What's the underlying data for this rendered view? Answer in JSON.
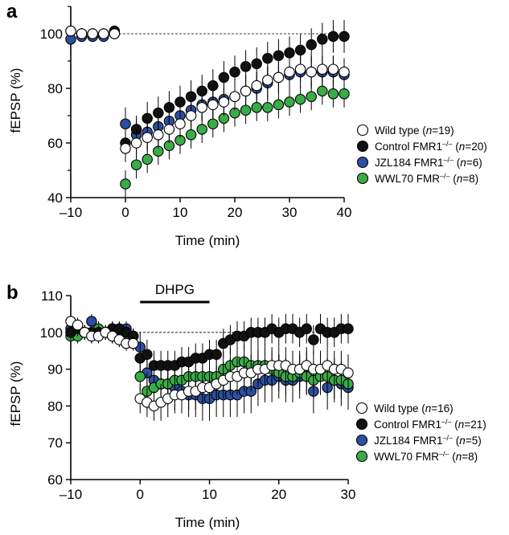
{
  "chart_data": [
    {
      "panel": "a",
      "type": "scatter",
      "xlabel": "Time (min)",
      "ylabel": "fEPSP (%)",
      "xlim": [
        -10,
        40
      ],
      "ylim": [
        40,
        110
      ],
      "xticks": [
        "–10",
        "0",
        "10",
        "20",
        "30",
        "40"
      ],
      "yticks": [
        "40",
        "60",
        "80",
        "100"
      ],
      "baseline": 100,
      "legend_position": "right",
      "series": [
        {
          "name": "Wild type (n=19)",
          "legend": {
            "prefix": "Wild type (",
            "n": "n",
            "suffix": "=19)"
          },
          "color": "#ffffff",
          "x": [
            -10,
            -8,
            -6,
            -4,
            -2,
            0,
            2,
            4,
            6,
            8,
            10,
            12,
            14,
            16,
            18,
            20,
            22,
            24,
            26,
            28,
            30,
            32,
            34,
            36,
            38,
            40
          ],
          "y": [
            101,
            100,
            100,
            100,
            100,
            58,
            60,
            62,
            63,
            65,
            67,
            70,
            73,
            74,
            75,
            77,
            79,
            81,
            83,
            84,
            86,
            87,
            86,
            87,
            87,
            86
          ],
          "err": [
            2,
            2,
            2,
            2,
            2,
            5,
            5,
            5,
            5,
            5,
            5,
            5,
            5,
            5,
            5,
            5,
            5,
            5,
            5,
            5,
            5,
            5,
            5,
            5,
            5,
            5
          ]
        },
        {
          "name": "Control FMR1–/– (n=20)",
          "legend": {
            "prefix": "Control FMR1",
            "sup": "–/–",
            "mid": " (",
            "n": "n",
            "suffix": "=20)"
          },
          "color": "#111111",
          "x": [
            -10,
            -8,
            -6,
            -4,
            -2,
            0,
            2,
            4,
            6,
            8,
            10,
            12,
            14,
            16,
            18,
            20,
            22,
            24,
            26,
            28,
            30,
            32,
            34,
            36,
            38,
            40
          ],
          "y": [
            101,
            100,
            100,
            100,
            101,
            60,
            65,
            69,
            71,
            73,
            75,
            77,
            79,
            81,
            84,
            86,
            88,
            89,
            91,
            92,
            93,
            94,
            96,
            98,
            99,
            99
          ],
          "err": [
            2,
            2,
            2,
            2,
            2,
            5,
            5,
            6,
            6,
            6,
            6,
            6,
            6,
            6,
            6,
            6,
            6,
            6,
            6,
            6,
            6,
            6,
            6,
            6,
            6,
            6
          ]
        },
        {
          "name": "JZL184 FMR1–/– (n=6)",
          "legend": {
            "prefix": "JZL184 FMR1",
            "sup": "–/–",
            "mid": " (",
            "n": "n",
            "suffix": "=6)"
          },
          "color": "#2d4fa2",
          "x": [
            -10,
            -8,
            -6,
            -4,
            -2,
            0,
            2,
            4,
            6,
            8,
            10,
            12,
            14,
            16,
            18,
            20,
            22,
            24,
            26,
            28,
            30,
            32,
            34,
            36,
            38,
            40
          ],
          "y": [
            98,
            99,
            99,
            99,
            100,
            67,
            63,
            64,
            66,
            68,
            70,
            72,
            74,
            75,
            76,
            77,
            79,
            80,
            82,
            84,
            85,
            86,
            86,
            86,
            86,
            85
          ],
          "err": [
            2,
            2,
            2,
            2,
            2,
            6,
            6,
            6,
            6,
            6,
            6,
            6,
            6,
            6,
            6,
            6,
            6,
            6,
            6,
            6,
            6,
            6,
            6,
            6,
            6,
            6
          ]
        },
        {
          "name": "WWL70 FMR–/– (n=8)",
          "legend": {
            "prefix": "WWL70 FMR",
            "sup": "–/–",
            "mid": " (",
            "n": "n",
            "suffix": "=8)"
          },
          "color": "#3aac47",
          "x": [
            0,
            2,
            4,
            6,
            8,
            10,
            12,
            14,
            16,
            18,
            20,
            22,
            24,
            26,
            28,
            30,
            32,
            34,
            36,
            38,
            40
          ],
          "y": [
            45,
            52,
            54,
            57,
            59,
            61,
            63,
            65,
            67,
            69,
            71,
            72,
            73,
            73,
            74,
            75,
            76,
            77,
            79,
            78,
            78
          ],
          "err": [
            5,
            5,
            5,
            5,
            5,
            5,
            5,
            5,
            5,
            5,
            5,
            5,
            5,
            5,
            5,
            5,
            5,
            5,
            5,
            5,
            5
          ]
        }
      ]
    },
    {
      "panel": "b",
      "type": "scatter",
      "xlabel": "Time (min)",
      "ylabel": "fEPSP (%)",
      "xlim": [
        -10,
        30
      ],
      "ylim": [
        60,
        110
      ],
      "xticks": [
        "–10",
        "0",
        "10",
        "20",
        "30"
      ],
      "yticks": [
        "60",
        "70",
        "80",
        "90",
        "100",
        "110"
      ],
      "baseline": 100,
      "drug_bar": {
        "label": "DHPG",
        "start": 0,
        "end": 10
      },
      "legend_position": "right",
      "series": [
        {
          "name": "Wild type (n=16)",
          "legend": {
            "prefix": "Wild type (",
            "n": "n",
            "suffix": "=16)"
          },
          "color": "#ffffff",
          "x": [
            -10,
            -9,
            -8,
            -7,
            -6,
            -5,
            -4,
            -3,
            -2,
            -1,
            0,
            1,
            2,
            3,
            4,
            5,
            6,
            7,
            8,
            9,
            10,
            11,
            12,
            13,
            14,
            15,
            16,
            17,
            18,
            19,
            20,
            21,
            22,
            23,
            24,
            25,
            26,
            27,
            28,
            29,
            30
          ],
          "y": [
            103,
            102,
            100,
            99,
            99,
            100,
            99,
            98,
            97,
            97,
            82,
            81,
            80,
            81,
            82,
            83,
            83,
            84,
            84,
            85,
            85,
            86,
            87,
            88,
            88,
            89,
            89,
            90,
            90,
            91,
            91,
            91,
            90,
            90,
            91,
            90,
            90,
            91,
            90,
            90,
            89
          ],
          "err": [
            2,
            2,
            2,
            2,
            2,
            2,
            2,
            2,
            2,
            2,
            4,
            4,
            4,
            5,
            5,
            5,
            5,
            5,
            5,
            5,
            5,
            5,
            5,
            5,
            5,
            5,
            5,
            5,
            5,
            5,
            5,
            5,
            5,
            5,
            5,
            5,
            5,
            5,
            5,
            5,
            5
          ]
        },
        {
          "name": "Control FMR1–/– (n=21)",
          "legend": {
            "prefix": "Control FMR1",
            "sup": "–/–",
            "mid": " (",
            "n": "n",
            "suffix": "=21)"
          },
          "color": "#111111",
          "x": [
            -10,
            -9,
            -8,
            -7,
            -6,
            -5,
            -4,
            -3,
            -2,
            -1,
            0,
            1,
            2,
            3,
            4,
            5,
            6,
            7,
            8,
            9,
            10,
            11,
            12,
            13,
            14,
            15,
            16,
            17,
            18,
            19,
            20,
            21,
            22,
            23,
            24,
            25,
            26,
            27,
            28,
            29,
            30
          ],
          "y": [
            100,
            101,
            100,
            100,
            100,
            100,
            101,
            101,
            100,
            99,
            93,
            94,
            91,
            91,
            91,
            91,
            92,
            92,
            93,
            93,
            94,
            94,
            97,
            98,
            99,
            99,
            100,
            100,
            100,
            101,
            100,
            101,
            101,
            100,
            101,
            98,
            101,
            100,
            100,
            101,
            101
          ],
          "err": [
            2,
            2,
            2,
            2,
            2,
            2,
            2,
            2,
            2,
            2,
            4,
            4,
            4,
            4,
            4,
            4,
            4,
            4,
            4,
            4,
            4,
            4,
            4,
            4,
            4,
            4,
            4,
            4,
            4,
            4,
            4,
            4,
            4,
            4,
            4,
            4,
            4,
            4,
            4,
            4,
            4
          ]
        },
        {
          "name": "JZL184 FMR1–/– (n=5)",
          "legend": {
            "prefix": "JZL184 FMR1",
            "sup": "–/–",
            "mid": " (",
            "n": "n",
            "suffix": "=5)"
          },
          "color": "#2d4fa2",
          "x": [
            -10,
            -9,
            -8,
            -7,
            -6,
            -5,
            -4,
            -3,
            -2,
            -1,
            0,
            1,
            2,
            3,
            4,
            5,
            6,
            7,
            8,
            9,
            10,
            11,
            12,
            13,
            14,
            15,
            16,
            17,
            18,
            19,
            20,
            21,
            22,
            23,
            24,
            25,
            26,
            27,
            28,
            29,
            30
          ],
          "y": [
            101,
            100,
            100,
            103,
            100,
            100,
            101,
            99,
            101,
            99,
            96,
            89,
            87,
            86,
            86,
            85,
            84,
            83,
            83,
            82,
            82,
            83,
            83,
            83,
            83,
            84,
            84,
            86,
            87,
            87,
            88,
            87,
            87,
            88,
            89,
            84,
            89,
            85,
            87,
            86,
            85
          ],
          "err": [
            2,
            2,
            2,
            2,
            2,
            2,
            2,
            2,
            2,
            2,
            4,
            5,
            6,
            6,
            6,
            6,
            6,
            6,
            6,
            6,
            6,
            6,
            6,
            6,
            6,
            6,
            6,
            6,
            6,
            6,
            6,
            6,
            6,
            6,
            6,
            6,
            6,
            6,
            6,
            6,
            6
          ]
        },
        {
          "name": "WWL70 FMR–/– (n=8)",
          "legend": {
            "prefix": "WWL70 FMR",
            "sup": "–/–",
            "mid": " (",
            "n": "n",
            "suffix": "=8)"
          },
          "color": "#3aac47",
          "x": [
            -10,
            -9,
            -8,
            -7,
            -6,
            -5,
            -4,
            -3,
            -2,
            -1,
            0,
            1,
            2,
            3,
            4,
            5,
            6,
            7,
            8,
            9,
            10,
            11,
            12,
            13,
            14,
            15,
            16,
            17,
            18,
            19,
            20,
            21,
            22,
            23,
            24,
            25,
            26,
            27,
            28,
            29,
            30
          ],
          "y": [
            99,
            99,
            100,
            99,
            101,
            100,
            99,
            101,
            100,
            99,
            88,
            84,
            85,
            86,
            86,
            87,
            87,
            88,
            88,
            88,
            88,
            88,
            90,
            91,
            92,
            92,
            91,
            91,
            91,
            90,
            89,
            88,
            88,
            89,
            88,
            87,
            88,
            88,
            87,
            87,
            86
          ],
          "err": [
            2,
            2,
            2,
            2,
            2,
            2,
            2,
            2,
            2,
            2,
            4,
            5,
            5,
            5,
            5,
            5,
            5,
            5,
            5,
            5,
            5,
            5,
            5,
            5,
            5,
            5,
            5,
            5,
            5,
            5,
            5,
            5,
            5,
            5,
            5,
            5,
            5,
            5,
            5,
            5,
            5
          ]
        }
      ]
    }
  ]
}
